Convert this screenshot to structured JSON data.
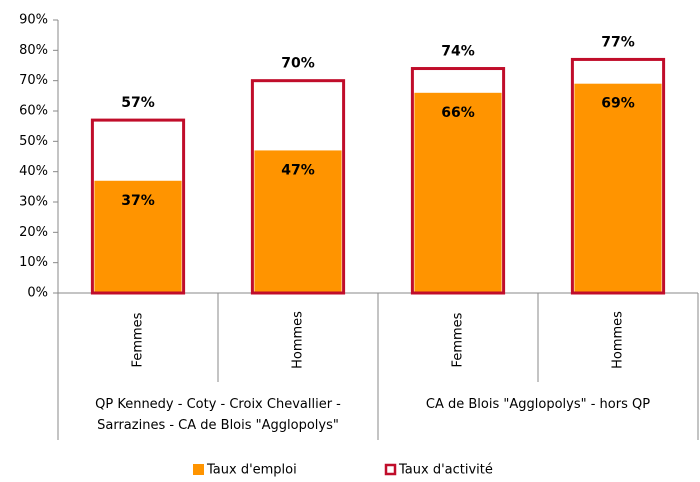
{
  "chart_data": {
    "type": "bar",
    "categories": [
      "Femmes",
      "Hommes",
      "Femmes",
      "Hommes"
    ],
    "groups": [
      {
        "label": "QP Kennedy - Coty - Croix Chevallier - Sarrazines - CA de Blois \"Agglopolys\"",
        "span": 2
      },
      {
        "label": "CA de Blois \"Agglopolys\" - hors QP",
        "span": 2
      }
    ],
    "series": [
      {
        "name": "Taux d'emploi",
        "color": "#ff9400",
        "style": "filled",
        "values": [
          37,
          47,
          66,
          69
        ],
        "value_labels": [
          "37%",
          "47%",
          "66%",
          "69%"
        ]
      },
      {
        "name": "Taux d'activité",
        "color": "#c00d2a",
        "style": "outline",
        "values": [
          57,
          70,
          74,
          77
        ],
        "value_labels": [
          "57%",
          "70%",
          "74%",
          "77%"
        ]
      }
    ],
    "ylim": [
      0,
      90
    ],
    "yticks": [
      {
        "value": 0,
        "label": "0%"
      },
      {
        "value": 10,
        "label": "10%"
      },
      {
        "value": 20,
        "label": "20%"
      },
      {
        "value": 30,
        "label": "30%"
      },
      {
        "value": 40,
        "label": "40%"
      },
      {
        "value": 50,
        "label": "50%"
      },
      {
        "value": 60,
        "label": "60%"
      },
      {
        "value": 70,
        "label": "70%"
      },
      {
        "value": 80,
        "label": "80%"
      },
      {
        "value": 90,
        "label": "90%"
      }
    ],
    "legend": "bottom"
  }
}
